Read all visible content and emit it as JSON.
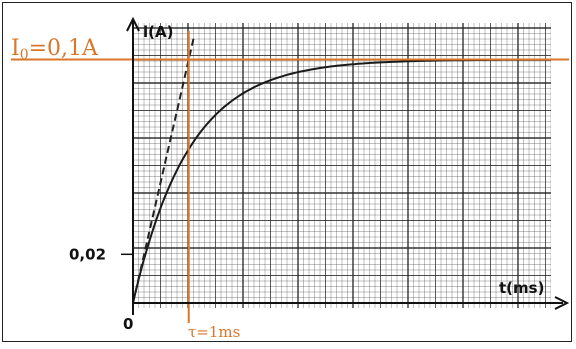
{
  "chart_data": {
    "type": "line",
    "x_unit": "ms",
    "y_unit": "A",
    "xlabel": "t(ms)",
    "ylabel": "i(A)",
    "origin_label": "0",
    "y_tick_label": "0,02",
    "asymptote_label_main": "I",
    "asymptote_label_sub": "0",
    "asymptote_label_rest": "=0,1A",
    "tau_label": "τ=1ms",
    "tau_ms": 1,
    "i0": 0.1,
    "y_tick_value": 0.02,
    "xlim": [
      0,
      7.5
    ],
    "ylim": [
      0,
      0.115
    ],
    "grid": true,
    "series": [
      {
        "curve": "i(t) = I0 (1 - e^(-t/τ))",
        "x": [
          0,
          0.25,
          0.5,
          0.75,
          1,
          1.5,
          2,
          2.5,
          3,
          3.5,
          4,
          5,
          6,
          7.5
        ],
        "values": [
          0,
          0.022,
          0.039,
          0.053,
          0.063,
          0.078,
          0.086,
          0.092,
          0.095,
          0.097,
          0.098,
          0.099,
          0.1,
          0.1
        ]
      },
      {
        "curve": "tangent at origin",
        "x": [
          0,
          1.1
        ],
        "values": [
          0,
          0.11
        ]
      }
    ],
    "colors": {
      "curve": "#1a1a1a",
      "annotation": "#d9772b",
      "grid": "#1f1f1f"
    }
  }
}
